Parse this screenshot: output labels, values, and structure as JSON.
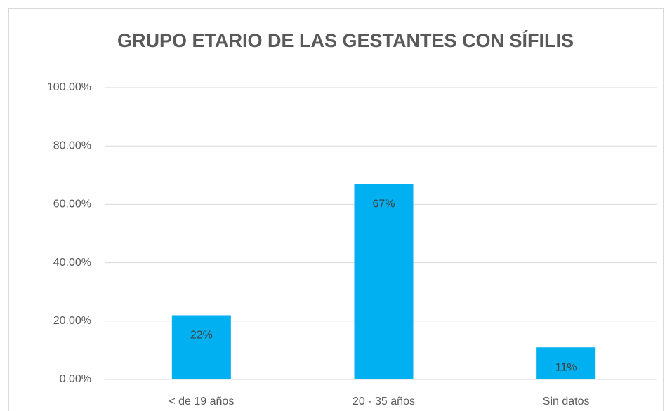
{
  "chart_data": {
    "type": "bar",
    "title": "GRUPO ETARIO DE LAS GESTANTES CON SÍFILIS",
    "categories": [
      "< de 19 años",
      "20 - 35 años",
      "Sin datos"
    ],
    "values": [
      22,
      67,
      11
    ],
    "value_labels": [
      "22%",
      "67%",
      "11%"
    ],
    "color": "#00b0f0",
    "ylim": [
      0,
      100
    ],
    "yticks": [
      {
        "value": 0,
        "label": "0.00%"
      },
      {
        "value": 20,
        "label": "20.00%"
      },
      {
        "value": 40,
        "label": "40.00%"
      },
      {
        "value": 60,
        "label": "60.00%"
      },
      {
        "value": 80,
        "label": "80.00%"
      },
      {
        "value": 100,
        "label": "100.00%"
      }
    ],
    "grid": true
  }
}
